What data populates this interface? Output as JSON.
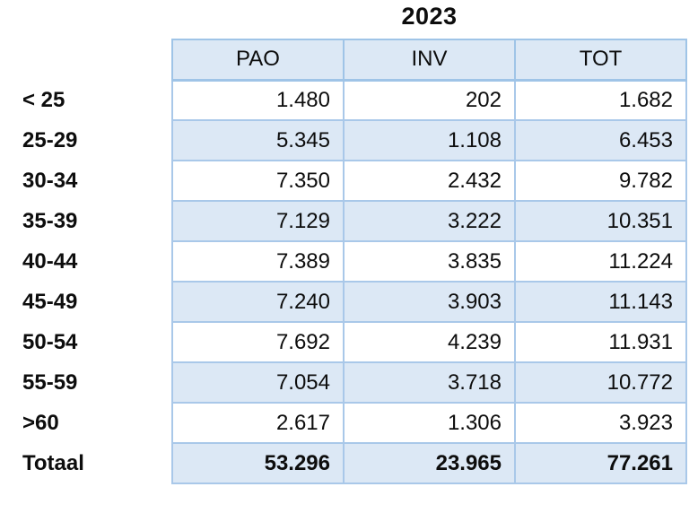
{
  "title": "2023",
  "table": {
    "corner": "",
    "columns": [
      "PAO",
      "INV",
      "TOT"
    ],
    "rows": [
      {
        "label": "< 25",
        "pao": "1.480",
        "inv": "202",
        "tot": "1.682"
      },
      {
        "label": "25-29",
        "pao": "5.345",
        "inv": "1.108",
        "tot": "6.453"
      },
      {
        "label": "30-34",
        "pao": "7.350",
        "inv": "2.432",
        "tot": "9.782"
      },
      {
        "label": "35-39",
        "pao": "7.129",
        "inv": "3.222",
        "tot": "10.351"
      },
      {
        "label": "40-44",
        "pao": "7.389",
        "inv": "3.835",
        "tot": "11.224"
      },
      {
        "label": "45-49",
        "pao": "7.240",
        "inv": "3.903",
        "tot": "11.143"
      },
      {
        "label": "50-54",
        "pao": "7.692",
        "inv": "4.239",
        "tot": "11.931"
      },
      {
        "label": "55-59",
        "pao": "7.054",
        "inv": "3.718",
        "tot": "10.772"
      },
      {
        "label": ">60",
        "pao": "2.617",
        "inv": "1.306",
        "tot": "3.923"
      }
    ],
    "total_row": {
      "label": "Totaal",
      "pao": "53.296",
      "inv": "23.965",
      "tot": "77.261"
    }
  },
  "colors": {
    "row_stripe_fill": "#dce8f5",
    "header_fill": "#dce8f5",
    "border": "#a9c8e9",
    "border_dark": "#9fc4e7",
    "text": "#0d0d0d"
  }
}
